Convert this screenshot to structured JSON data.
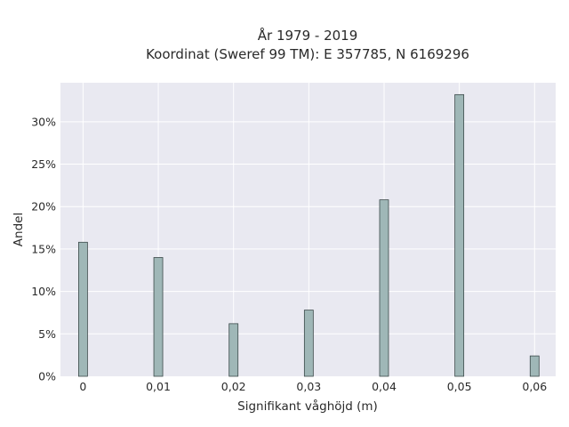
{
  "chart_data": {
    "type": "bar",
    "title_line1": "År 1979 - 2019",
    "title_line2": "Koordinat (Sweref 99 TM): E 357785, N 6169296",
    "xlabel": "Signifikant våghöjd (m)",
    "ylabel": "Andel",
    "x": [
      0,
      0.01,
      0.02,
      0.03,
      0.04,
      0.05,
      0.06
    ],
    "values": [
      15.8,
      14.0,
      6.2,
      7.8,
      20.8,
      33.2,
      2.4
    ],
    "xlim": [
      -0.003,
      0.0628
    ],
    "ylim": [
      0,
      34.6
    ],
    "xticks": [
      {
        "value": 0,
        "label": "0"
      },
      {
        "value": 0.01,
        "label": "0,01"
      },
      {
        "value": 0.02,
        "label": "0,02"
      },
      {
        "value": 0.03,
        "label": "0,03"
      },
      {
        "value": 0.04,
        "label": "0,04"
      },
      {
        "value": 0.05,
        "label": "0,05"
      },
      {
        "value": 0.06,
        "label": "0,06"
      }
    ],
    "yticks": [
      {
        "value": 0,
        "label": "0%"
      },
      {
        "value": 5,
        "label": "5%"
      },
      {
        "value": 10,
        "label": "10%"
      },
      {
        "value": 15,
        "label": "15%"
      },
      {
        "value": 20,
        "label": "20%"
      },
      {
        "value": 25,
        "label": "25%"
      },
      {
        "value": 30,
        "label": "30%"
      }
    ],
    "grid": true,
    "colors": {
      "plot_background": "#e9e9f1",
      "grid": "#ffffff",
      "bar_fill": "#9fb7b7",
      "bar_stroke": "#3c4a4a"
    }
  }
}
